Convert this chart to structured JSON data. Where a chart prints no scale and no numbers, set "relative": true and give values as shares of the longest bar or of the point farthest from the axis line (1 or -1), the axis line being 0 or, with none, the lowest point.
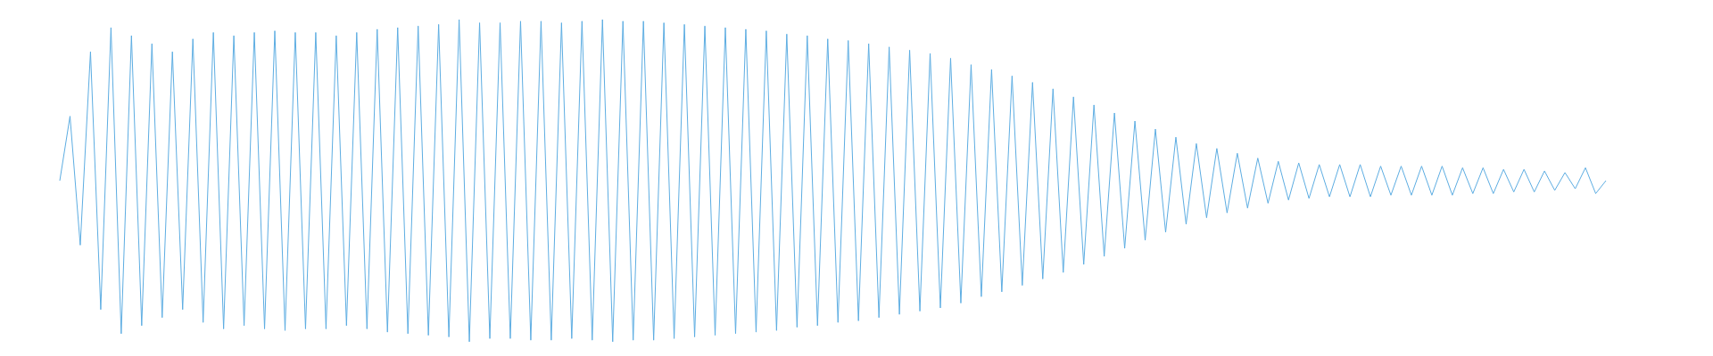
{
  "chart_data": {
    "type": "line",
    "relative": true,
    "categories": [
      null,
      null,
      null,
      null,
      null,
      null,
      null,
      null,
      null,
      null,
      null,
      null,
      null,
      null,
      null,
      null,
      null,
      null,
      null,
      null,
      null,
      null,
      null,
      null,
      null,
      null,
      null,
      null,
      null,
      null,
      null,
      null,
      null,
      null,
      null,
      null,
      null,
      null,
      null,
      null,
      null,
      null,
      null,
      null,
      null,
      null,
      null,
      null,
      null,
      null,
      null,
      null,
      null,
      null,
      null,
      null,
      null,
      null,
      null,
      null,
      null,
      null,
      null,
      null,
      null,
      null,
      null,
      null,
      null,
      null,
      null,
      null,
      null,
      null,
      null,
      null,
      null,
      null,
      null,
      null,
      null,
      null,
      null,
      null,
      null,
      null,
      null,
      null,
      null,
      null,
      null,
      null,
      null,
      null,
      null,
      null,
      null,
      null,
      null,
      null,
      null,
      null,
      null,
      null,
      null,
      null,
      null,
      null,
      null,
      null,
      null,
      null,
      null,
      null,
      null,
      null,
      null,
      null,
      null,
      null,
      null,
      null,
      null,
      null,
      null,
      null,
      null,
      null,
      null,
      null,
      null,
      null,
      null,
      null,
      null,
      null,
      null,
      null,
      null,
      null,
      null,
      null,
      null,
      null,
      null,
      null,
      null,
      null,
      null,
      null,
      null,
      null
    ],
    "series": [
      {
        "color": "#5dade2",
        "values": [
          0.5,
          0.7,
          0.3,
          0.9,
          0.1,
          0.975,
          0.025,
          0.95,
          0.05,
          0.925,
          0.075,
          0.9,
          0.1,
          0.94,
          0.06,
          0.96,
          0.04,
          0.95,
          0.05,
          0.96,
          0.04,
          0.965,
          0.035,
          0.96,
          0.04,
          0.96,
          0.04,
          0.95,
          0.05,
          0.96,
          0.04,
          0.97,
          0.03,
          0.975,
          0.025,
          0.98,
          0.02,
          0.985,
          0.015,
          1,
          0,
          0.99,
          0.01,
          0.99,
          0.01,
          0.995,
          0.005,
          0.995,
          0.005,
          0.99,
          0.01,
          0.995,
          0.005,
          1,
          0,
          0.995,
          0.005,
          0.995,
          0.005,
          0.99,
          0.01,
          0.985,
          0.015,
          0.98,
          0.02,
          0.975,
          0.025,
          0.97,
          0.03,
          0.965,
          0.035,
          0.955,
          0.045,
          0.95,
          0.05,
          0.94,
          0.06,
          0.935,
          0.065,
          0.925,
          0.075,
          0.915,
          0.085,
          0.905,
          0.095,
          0.895,
          0.105,
          0.88,
          0.12,
          0.86,
          0.14,
          0.845,
          0.155,
          0.825,
          0.175,
          0.805,
          0.195,
          0.785,
          0.215,
          0.76,
          0.24,
          0.735,
          0.265,
          0.71,
          0.29,
          0.685,
          0.315,
          0.66,
          0.34,
          0.635,
          0.365,
          0.615,
          0.385,
          0.6,
          0.4,
          0.585,
          0.415,
          0.57,
          0.43,
          0.56,
          0.44,
          0.555,
          0.445,
          0.55,
          0.45,
          0.55,
          0.45,
          0.55,
          0.45,
          0.545,
          0.455,
          0.545,
          0.455,
          0.545,
          0.455,
          0.545,
          0.455,
          0.54,
          0.46,
          0.54,
          0.46,
          0.535,
          0.465,
          0.535,
          0.465,
          0.53,
          0.47,
          0.525,
          0.475,
          0.54,
          0.46,
          0.5
        ]
      }
    ]
  }
}
